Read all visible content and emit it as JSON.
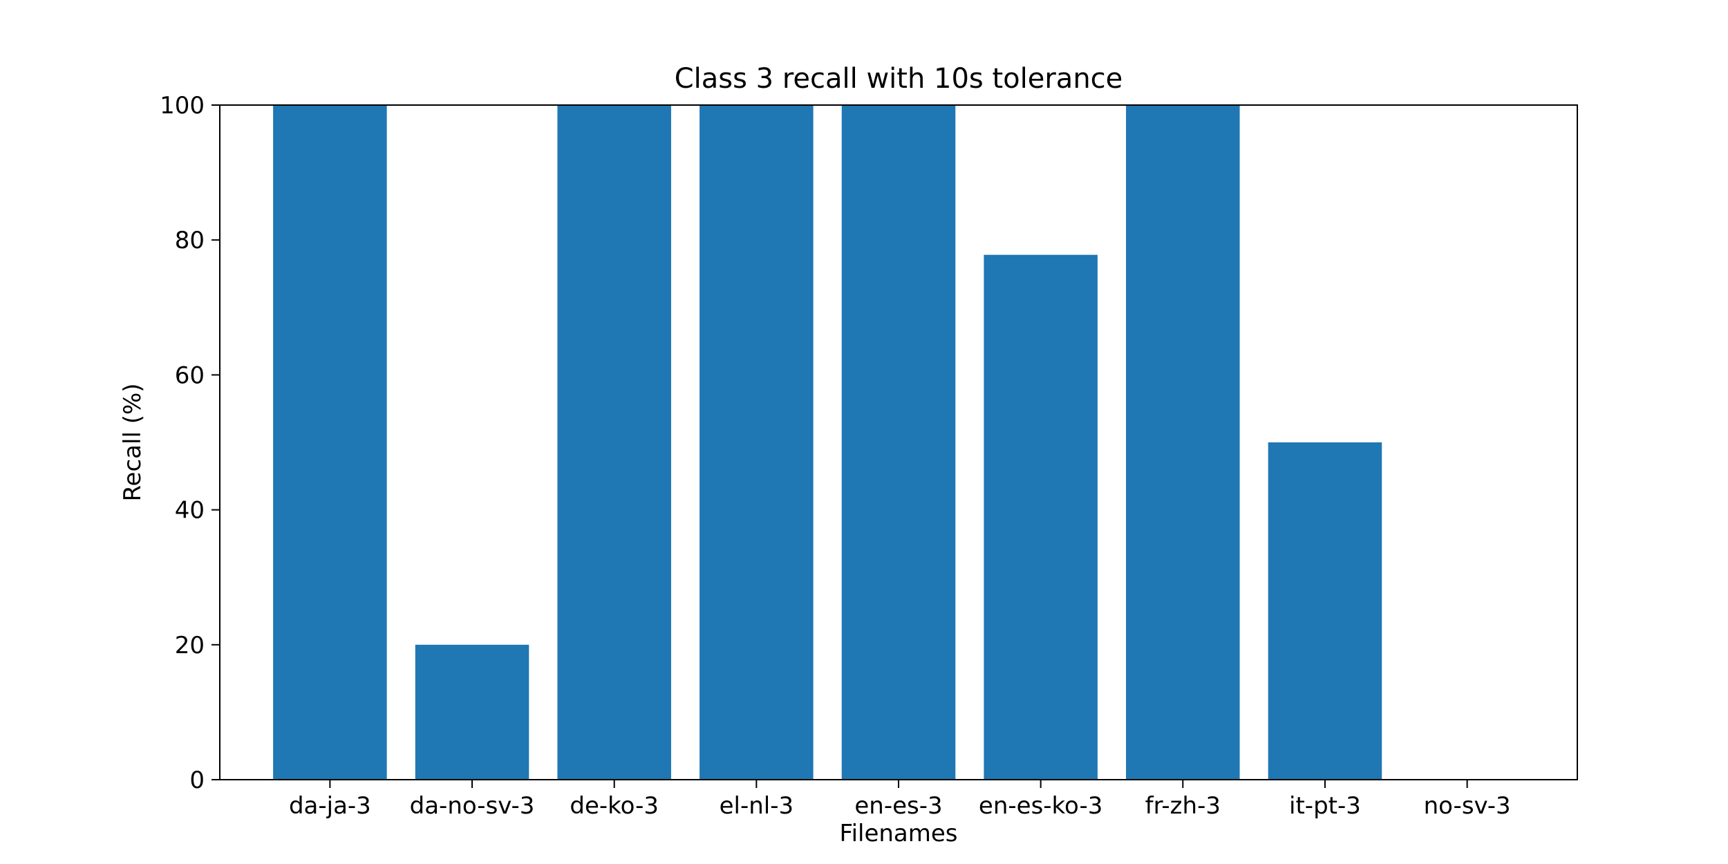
{
  "colors": {
    "bar": "#1f77b4",
    "axis": "#000000",
    "background": "#ffffff"
  },
  "chart_data": {
    "type": "bar",
    "title": "Class 3 recall with 10s tolerance",
    "xlabel": "Filenames",
    "ylabel": "Recall (%)",
    "categories": [
      "da-ja-3",
      "da-no-sv-3",
      "de-ko-3",
      "el-nl-3",
      "en-es-3",
      "en-es-ko-3",
      "fr-zh-3",
      "it-pt-3",
      "no-sv-3"
    ],
    "values": [
      100,
      20,
      100,
      100,
      100,
      77.8,
      100,
      50,
      0
    ],
    "ylim": [
      0,
      100
    ],
    "yticks": [
      0,
      20,
      40,
      60,
      80,
      100
    ],
    "grid": false,
    "legend": "none"
  }
}
